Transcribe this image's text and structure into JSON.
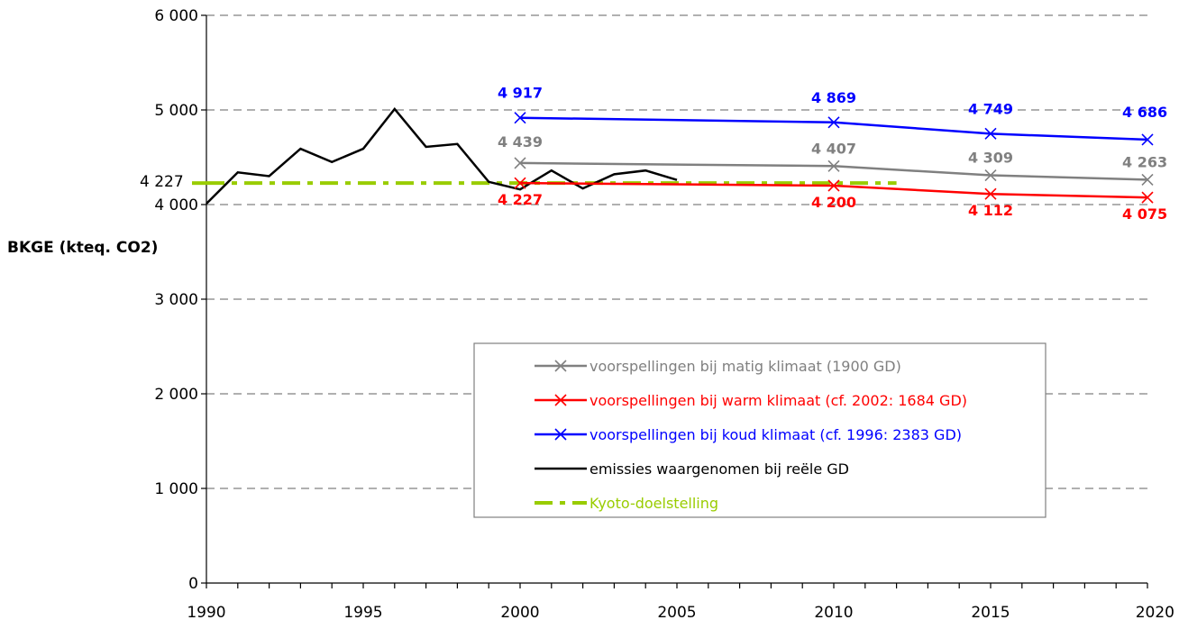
{
  "chart_data": {
    "type": "line",
    "ylabel": "BKGE (kteq. CO2)",
    "xlabel": "",
    "xlim": [
      1990,
      2020
    ],
    "ylim": [
      0,
      6000
    ],
    "x_ticks": [
      1990,
      1995,
      2000,
      2005,
      2010,
      2015,
      2020
    ],
    "x_tick_labels": [
      "1990",
      "1995",
      "2000",
      "2005",
      "2010",
      "2015",
      "2020"
    ],
    "y_ticks": [
      0,
      1000,
      2000,
      3000,
      4000,
      5000,
      6000
    ],
    "y_tick_labels": [
      "0",
      "1 000",
      "2 000",
      "3 000",
      "4 000",
      "5 000",
      "6 000"
    ],
    "grid": "horizontal dashed",
    "legend_position": "bottom-center",
    "kyoto_label": "4 227",
    "series": [
      {
        "name": "voorspellingen bij matig klimaat (1900 GD)",
        "color": "#808080",
        "marker": "x",
        "x": [
          2000,
          2010,
          2015,
          2020
        ],
        "y": [
          4439,
          4407,
          4309,
          4263
        ],
        "labels": [
          "4 439",
          "4 407",
          "4 309",
          "4 263"
        ]
      },
      {
        "name": "voorspellingen bij warm klimaat (cf. 2002: 1684 GD)",
        "color": "#ff0000",
        "marker": "x",
        "x": [
          2000,
          2010,
          2015,
          2020
        ],
        "y": [
          4227,
          4200,
          4112,
          4075
        ],
        "labels": [
          "4 227",
          "4 200",
          "4 112",
          "4 075"
        ]
      },
      {
        "name": "voorspellingen bij koud klimaat (cf. 1996: 2383 GD)",
        "color": "#0000ff",
        "marker": "x",
        "x": [
          2000,
          2010,
          2015,
          2020
        ],
        "y": [
          4917,
          4869,
          4749,
          4686
        ],
        "labels": [
          "4 917",
          "4 869",
          "4 749",
          "4 686"
        ]
      },
      {
        "name": "emissies waargenomen bij reële GD",
        "color": "#000000",
        "marker": "none",
        "x": [
          1990,
          1991,
          1992,
          1993,
          1994,
          1995,
          1996,
          1997,
          1998,
          1999,
          2000,
          2001,
          2002,
          2003,
          2004,
          2005
        ],
        "y": [
          4010,
          4340,
          4300,
          4590,
          4450,
          4590,
          5010,
          4610,
          4640,
          4240,
          4160,
          4360,
          4170,
          4320,
          4360,
          4260
        ]
      },
      {
        "name": "Kyoto-doelstelling",
        "color": "#99cc00",
        "marker": "dash",
        "x": [
          1990,
          2012
        ],
        "y": [
          4227,
          4227
        ]
      }
    ]
  }
}
